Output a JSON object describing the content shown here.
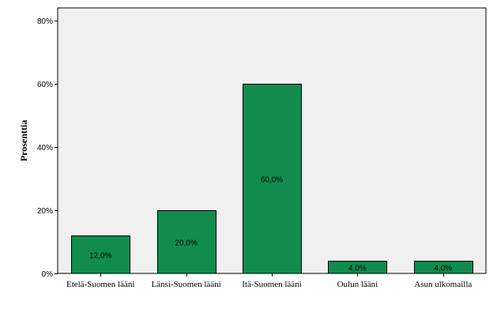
{
  "chart_data": {
    "type": "bar",
    "categories": [
      "Etelä-Suomen lääni",
      "Länsi-Suomen lääni",
      "Itä-Suomen lääni",
      "Oulun lääni",
      "Asun ulkomailla"
    ],
    "values": [
      12,
      20,
      60,
      4,
      4
    ],
    "data_labels": [
      "12,0%",
      "20,0%",
      "60,0%",
      "4,0%",
      "4,0%"
    ],
    "title": "",
    "xlabel": "",
    "ylabel": "Prosenttia",
    "ylim": [
      0,
      84
    ],
    "yticks": [
      0,
      20,
      40,
      60,
      80
    ],
    "ytick_labels": [
      "0%",
      "20%",
      "40%",
      "60%",
      "80%"
    ],
    "grid": false,
    "legend": "none",
    "colors": {
      "bar_fill": "#118c4e",
      "bar_stroke": "#000000",
      "plot_background": "#f0f0f0",
      "page_background": "#ffffff"
    }
  }
}
